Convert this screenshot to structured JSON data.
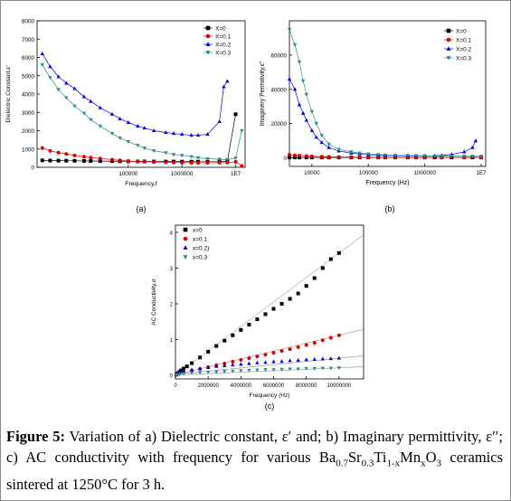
{
  "chart_data": [
    {
      "type": "line",
      "panel_label": "(a)",
      "xlabel": "Frequency,f",
      "ylabel": "Dielectric Constant,ε'",
      "x_scale": "log",
      "xlim": [
        2000,
        15000000
      ],
      "ylim": [
        0,
        8000
      ],
      "grid": false,
      "legend_position": "top-right",
      "x_ticks": [
        {
          "label": "100000",
          "v": 100000
        },
        {
          "label": "1000000",
          "v": 1000000
        },
        {
          "label": "1E7",
          "v": 10000000
        }
      ],
      "y_ticks": [
        "0",
        "1000",
        "2000",
        "3000",
        "4000",
        "5000",
        "6000",
        "7000",
        "8000"
      ],
      "series": [
        {
          "name": "X=0",
          "color": "#000000",
          "marker": "square",
          "x": [
            2500,
            3500,
            5000,
            7000,
            10000,
            15000,
            20000,
            30000,
            50000,
            70000,
            100000,
            150000,
            200000,
            300000,
            500000,
            700000,
            1000000,
            1500000,
            2000000,
            3000000,
            5000000,
            7000000,
            10000000
          ],
          "y": [
            380,
            370,
            365,
            360,
            355,
            350,
            345,
            340,
            335,
            330,
            325,
            322,
            320,
            318,
            315,
            312,
            310,
            308,
            305,
            305,
            310,
            330,
            2900
          ]
        },
        {
          "name": "X=0.1",
          "color": "#e00000",
          "marker": "circle",
          "x": [
            2500,
            3500,
            5000,
            7000,
            10000,
            15000,
            20000,
            30000,
            50000,
            70000,
            100000,
            150000,
            200000,
            300000,
            500000,
            700000,
            1000000,
            1500000,
            2000000,
            3000000,
            5000000,
            7000000,
            10000000,
            13000000
          ],
          "y": [
            1050,
            900,
            800,
            730,
            650,
            580,
            530,
            480,
            420,
            380,
            340,
            320,
            300,
            290,
            275,
            265,
            255,
            250,
            245,
            245,
            250,
            260,
            300,
            80
          ]
        },
        {
          "name": "X=0.2",
          "color": "#0000e0",
          "marker": "triangle-up",
          "x": [
            2500,
            3500,
            5000,
            7000,
            10000,
            15000,
            20000,
            30000,
            50000,
            70000,
            100000,
            150000,
            200000,
            300000,
            500000,
            700000,
            1000000,
            1500000,
            2000000,
            3000000,
            5000000,
            6000000,
            7000000
          ],
          "y": [
            6200,
            5500,
            4950,
            4600,
            4300,
            3850,
            3600,
            3250,
            2900,
            2650,
            2450,
            2250,
            2150,
            2000,
            1900,
            1850,
            1800,
            1750,
            1750,
            1800,
            2500,
            4400,
            4700
          ]
        },
        {
          "name": "X=0.3",
          "color": "#2b8c8c",
          "marker": "triangle-down",
          "x": [
            2500,
            3500,
            5000,
            7000,
            10000,
            15000,
            20000,
            30000,
            50000,
            70000,
            100000,
            150000,
            200000,
            300000,
            500000,
            700000,
            1000000,
            1500000,
            2000000,
            3000000,
            5000000,
            7000000,
            10000000,
            13000000
          ],
          "y": [
            5600,
            4900,
            4250,
            3800,
            3350,
            2950,
            2600,
            2250,
            1850,
            1600,
            1400,
            1200,
            1050,
            900,
            800,
            700,
            650,
            580,
            520,
            470,
            440,
            420,
            500,
            2000
          ]
        }
      ]
    },
    {
      "type": "line",
      "panel_label": "(b)",
      "xlabel": "Frequency (Hz)",
      "ylabel": "Imaginery Permitivity,ε''",
      "x_scale": "log",
      "xlim": [
        4000,
        12000000
      ],
      "ylim": [
        -5000,
        80000
      ],
      "grid": false,
      "legend_position": "top-right",
      "x_ticks": [
        {
          "label": "10000",
          "v": 10000
        },
        {
          "label": "100000",
          "v": 100000
        },
        {
          "label": "1000000",
          "v": 1000000
        },
        {
          "label": "1E7",
          "v": 10000000
        }
      ],
      "y_ticks": [
        "0",
        "20000",
        "40000",
        "60000"
      ],
      "series": [
        {
          "name": "X=0",
          "color": "#000000",
          "marker": "square",
          "x": [
            4000,
            5000,
            6000,
            8000,
            10000,
            15000,
            20000,
            30000,
            50000,
            70000,
            100000,
            150000,
            200000,
            300000,
            500000,
            700000,
            1000000,
            1500000,
            2000000,
            3000000,
            5000000,
            7000000,
            10000000
          ],
          "y": [
            200,
            200,
            200,
            200,
            200,
            200,
            200,
            200,
            200,
            200,
            200,
            200,
            200,
            200,
            200,
            200,
            200,
            200,
            200,
            200,
            200,
            200,
            200
          ]
        },
        {
          "name": "X=0.1",
          "color": "#e00000",
          "marker": "circle",
          "x": [
            4000,
            5000,
            6000,
            8000,
            10000,
            15000,
            20000,
            30000,
            50000,
            70000,
            100000,
            150000,
            200000,
            300000,
            500000,
            700000,
            1000000,
            2000000,
            5000000,
            10000000
          ],
          "y": [
            1800,
            1500,
            1300,
            1100,
            900,
            700,
            600,
            500,
            400,
            350,
            300,
            280,
            260,
            250,
            240,
            230,
            220,
            210,
            200,
            200
          ]
        },
        {
          "name": "X=0.2",
          "color": "#0000e0",
          "marker": "triangle-up",
          "x": [
            4000,
            5000,
            6000,
            7000,
            8000,
            10000,
            12000,
            15000,
            20000,
            30000,
            50000,
            70000,
            100000,
            150000,
            200000,
            300000,
            500000,
            700000,
            1000000,
            1500000,
            2000000,
            3000000,
            5000000,
            7000000,
            8000000
          ],
          "y": [
            46000,
            40000,
            31000,
            26000,
            22000,
            16000,
            12000,
            9000,
            6000,
            4000,
            2800,
            2300,
            1900,
            1600,
            1400,
            1300,
            1200,
            1100,
            1100,
            1200,
            1400,
            2000,
            3500,
            6000,
            10000
          ]
        },
        {
          "name": "X=0.3",
          "color": "#2b8c8c",
          "marker": "triangle-down",
          "x": [
            4000,
            5000,
            6000,
            7000,
            8000,
            10000,
            12000,
            15000,
            20000,
            30000,
            50000,
            70000,
            100000,
            150000,
            200000,
            300000,
            500000,
            700000,
            1000000,
            1500000,
            2000000,
            3000000,
            5000000,
            7000000,
            10000000
          ],
          "y": [
            75000,
            66000,
            56000,
            45000,
            37000,
            27000,
            20000,
            13000,
            8000,
            5000,
            3500,
            2800,
            2300,
            1900,
            1700,
            1500,
            1400,
            1300,
            1200,
            1100,
            1050,
            1000,
            950,
            950,
            950
          ]
        }
      ]
    },
    {
      "type": "scatter",
      "panel_label": "(c)",
      "xlabel": "Frequency (Hz)",
      "ylabel": "AC Conductivity,σ",
      "xlim": [
        0,
        11500000
      ],
      "ylim": [
        -0.1,
        4.2
      ],
      "grid": false,
      "legend_position": "top-left",
      "x_ticks": [
        "0",
        "2000000",
        "4000000",
        "6000000",
        "8000000",
        "10000000"
      ],
      "y_ticks": [
        "0",
        "1",
        "2",
        "3",
        "4"
      ],
      "series": [
        {
          "name": "x=0",
          "color": "#000000",
          "marker": "square",
          "x": [
            50000,
            150000,
            250000,
            350000,
            500000,
            700000,
            1000000,
            1500000,
            2000000,
            2500000,
            3000000,
            3500000,
            4000000,
            4500000,
            5000000,
            5500000,
            6000000,
            6500000,
            7000000,
            7500000,
            8000000,
            8500000,
            9000000,
            9500000,
            10000000
          ],
          "y": [
            0.02,
            0.06,
            0.1,
            0.14,
            0.19,
            0.25,
            0.34,
            0.5,
            0.66,
            0.82,
            0.97,
            1.12,
            1.27,
            1.42,
            1.57,
            1.71,
            1.86,
            2.0,
            2.14,
            2.29,
            2.5,
            2.72,
            3.0,
            3.25,
            3.42
          ]
        },
        {
          "name": "x=0.1",
          "color": "#e00000",
          "marker": "circle",
          "x": [
            50000,
            250000,
            500000,
            1000000,
            1500000,
            2000000,
            2500000,
            3000000,
            3500000,
            4000000,
            4500000,
            5000000,
            5500000,
            6000000,
            6500000,
            7000000,
            7500000,
            8000000,
            8500000,
            9000000,
            9500000,
            10000000
          ],
          "y": [
            0.02,
            0.05,
            0.08,
            0.13,
            0.18,
            0.23,
            0.28,
            0.33,
            0.38,
            0.43,
            0.48,
            0.53,
            0.58,
            0.63,
            0.68,
            0.73,
            0.79,
            0.85,
            0.91,
            0.98,
            1.05,
            1.12
          ]
        },
        {
          "name": "x=0.2)",
          "color": "#0000e0",
          "marker": "triangle-up",
          "x": [
            50000,
            250000,
            500000,
            1000000,
            1500000,
            2000000,
            2500000,
            3000000,
            3500000,
            4000000,
            4500000,
            5000000,
            5500000,
            6000000,
            6500000,
            7000000,
            7500000,
            8000000,
            8500000,
            9000000,
            9500000,
            10000000
          ],
          "y": [
            0.03,
            0.08,
            0.12,
            0.16,
            0.19,
            0.22,
            0.25,
            0.27,
            0.29,
            0.31,
            0.33,
            0.35,
            0.36,
            0.38,
            0.39,
            0.41,
            0.42,
            0.44,
            0.45,
            0.46,
            0.47,
            0.48
          ]
        },
        {
          "name": "x=0.3",
          "color": "#2b8c8c",
          "marker": "triangle-down",
          "x": [
            50000,
            250000,
            500000,
            1000000,
            1500000,
            2000000,
            2500000,
            3000000,
            3500000,
            4000000,
            4500000,
            5000000,
            5500000,
            6000000,
            6500000,
            7000000,
            7500000,
            8000000,
            8500000,
            9000000,
            9500000,
            10000000
          ],
          "y": [
            0.01,
            0.03,
            0.05,
            0.07,
            0.08,
            0.09,
            0.1,
            0.11,
            0.12,
            0.13,
            0.14,
            0.15,
            0.16,
            0.16,
            0.17,
            0.18,
            0.18,
            0.19,
            0.19,
            0.2,
            0.2,
            0.21
          ]
        }
      ]
    }
  ],
  "caption": {
    "figure_label": "Figure 5:",
    "line1": "Variation of a) Dielectric constant, ε′ and; b) Imaginary",
    "line2": "permittivity, ε′′; c) AC conductivity with frequency for various",
    "line3": "ceramics sintered at 1250°C for 3 h.",
    "formula": {
      "parts": [
        {
          "t": "Ba",
          "sub": ""
        },
        {
          "t": "",
          "sub": "0.7"
        },
        {
          "t": "Sr",
          "sub": ""
        },
        {
          "t": "",
          "sub": "0.3"
        },
        {
          "t": "Ti",
          "sub": ""
        },
        {
          "t": "",
          "sub": "1-x"
        },
        {
          "t": "Mn",
          "sub": ""
        },
        {
          "t": "",
          "sub": "x"
        },
        {
          "t": "O",
          "sub": ""
        },
        {
          "t": "",
          "sub": "3"
        }
      ]
    }
  }
}
